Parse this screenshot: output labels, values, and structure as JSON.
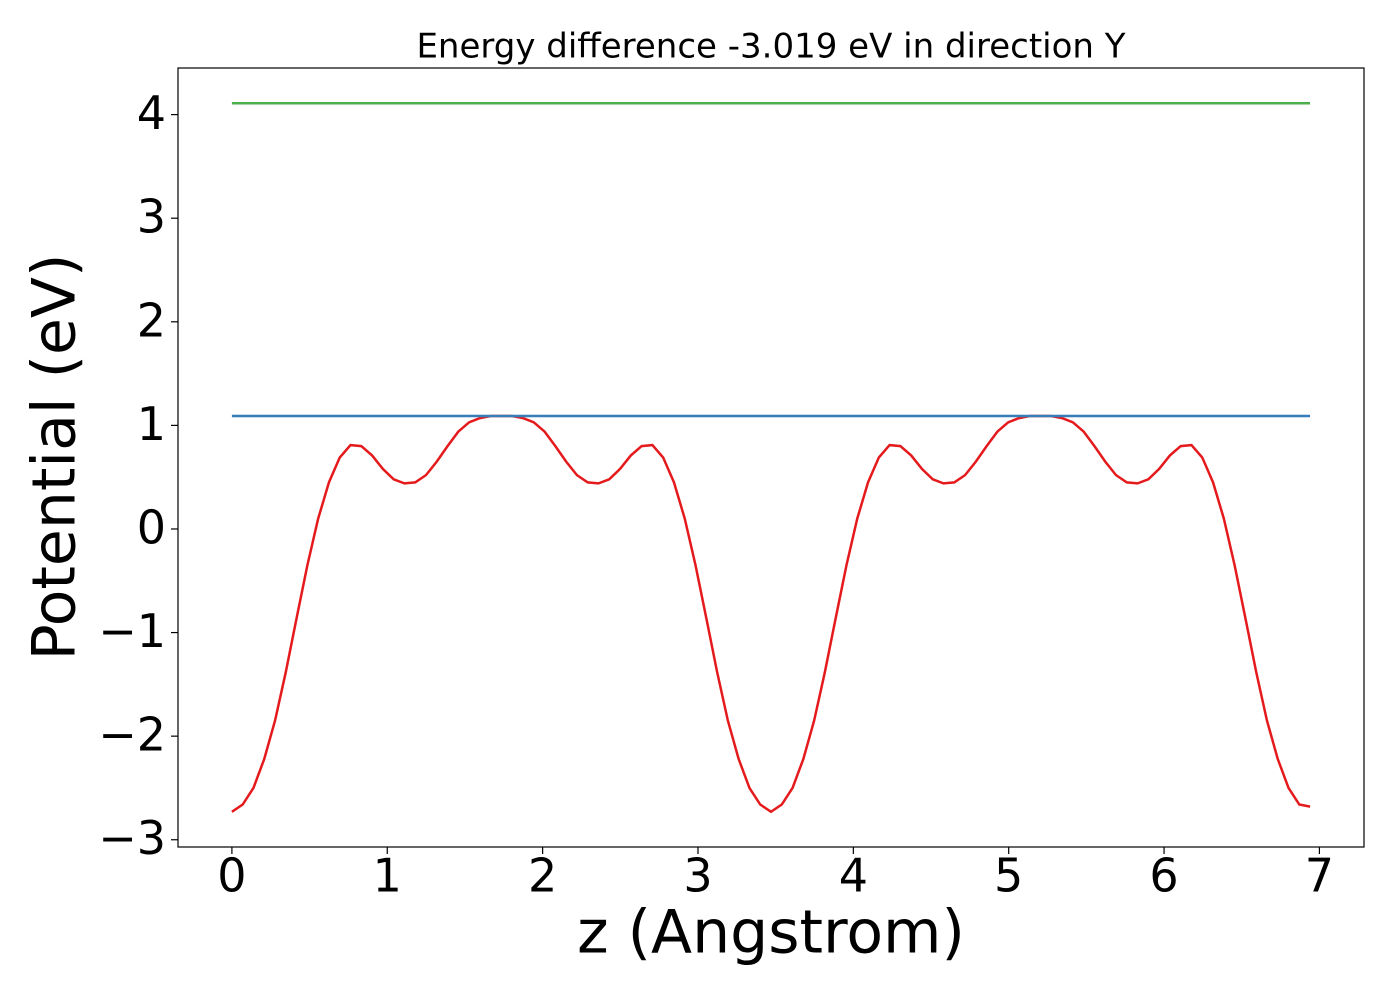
{
  "chart_data": {
    "type": "line",
    "title": "Energy difference -3.019 eV in direction Y",
    "xlabel": "z (Angstrom)",
    "ylabel": "Potential (eV)",
    "xlim": [
      -0.347,
      7.287
    ],
    "ylim": [
      -3.07,
      4.45
    ],
    "xticks": [
      0,
      1,
      2,
      3,
      4,
      5,
      6,
      7
    ],
    "yticks": [
      {
        "value": -3,
        "label": "−3"
      },
      {
        "value": -2,
        "label": "−2"
      },
      {
        "value": -1,
        "label": "−1"
      },
      0,
      1,
      2,
      3,
      4
    ],
    "grid": false,
    "series": [
      {
        "color": "#e41a1c",
        "x": [
          0,
          0.0694,
          0.1388,
          0.2082,
          0.2776,
          0.347,
          0.4164,
          0.4858,
          0.5552,
          0.6246,
          0.694,
          0.7634,
          0.8328,
          0.9022,
          0.9716,
          1.041,
          1.1104,
          1.1798,
          1.2492,
          1.3186,
          1.388,
          1.4574,
          1.5268,
          1.5962,
          1.6656,
          1.735,
          1.8044,
          1.8738,
          1.9432,
          2.0126,
          2.082,
          2.1514,
          2.2208,
          2.2902,
          2.3596,
          2.429,
          2.4984,
          2.5678,
          2.6372,
          2.7066,
          2.776,
          2.8454,
          2.9148,
          2.9842,
          3.0536,
          3.123,
          3.1924,
          3.2618,
          3.3312,
          3.4006,
          3.47,
          3.5394,
          3.6088,
          3.6782,
          3.7476,
          3.817,
          3.8864,
          3.9558,
          4.0252,
          4.0946,
          4.164,
          4.2334,
          4.3028,
          4.3722,
          4.4416,
          4.511,
          4.5804,
          4.6498,
          4.7192,
          4.7886,
          4.858,
          4.9274,
          4.9968,
          5.0662,
          5.1356,
          5.205,
          5.2744,
          5.3438,
          5.4132,
          5.4826,
          5.552,
          5.6214,
          5.6908,
          5.7602,
          5.8296,
          5.899,
          5.9684,
          6.0378,
          6.1072,
          6.1766,
          6.246,
          6.3154,
          6.3848,
          6.4542,
          6.5236,
          6.593,
          6.6624,
          6.7318,
          6.8012,
          6.8706,
          6.94
        ],
        "values": [
          -2.73,
          -2.66,
          -2.5,
          -2.22,
          -1.85,
          -1.38,
          -0.86,
          -0.35,
          0.1,
          0.45,
          0.69,
          0.81,
          0.8,
          0.71,
          0.58,
          0.48,
          0.44,
          0.45,
          0.52,
          0.65,
          0.8,
          0.94,
          1.03,
          1.07,
          1.09,
          1.09,
          1.09,
          1.07,
          1.03,
          0.94,
          0.8,
          0.65,
          0.52,
          0.45,
          0.44,
          0.48,
          0.58,
          0.71,
          0.8,
          0.81,
          0.69,
          0.45,
          0.1,
          -0.35,
          -0.86,
          -1.38,
          -1.85,
          -2.22,
          -2.5,
          -2.66,
          -2.73,
          -2.66,
          -2.5,
          -2.22,
          -1.85,
          -1.38,
          -0.86,
          -0.35,
          0.1,
          0.45,
          0.69,
          0.81,
          0.8,
          0.71,
          0.58,
          0.48,
          0.44,
          0.45,
          0.52,
          0.65,
          0.8,
          0.94,
          1.03,
          1.07,
          1.09,
          1.09,
          1.09,
          1.07,
          1.03,
          0.94,
          0.8,
          0.65,
          0.52,
          0.45,
          0.44,
          0.48,
          0.58,
          0.71,
          0.8,
          0.81,
          0.69,
          0.45,
          0.1,
          -0.35,
          -0.86,
          -1.38,
          -1.85,
          -2.22,
          -2.5,
          -2.66,
          -2.68
        ]
      },
      {
        "color": "#377eb8",
        "x": [
          0,
          6.94
        ],
        "values": [
          1.09,
          1.09
        ]
      },
      {
        "color": "#4daf4a",
        "x": [
          0,
          6.94
        ],
        "values": [
          4.11,
          4.11
        ]
      }
    ]
  }
}
